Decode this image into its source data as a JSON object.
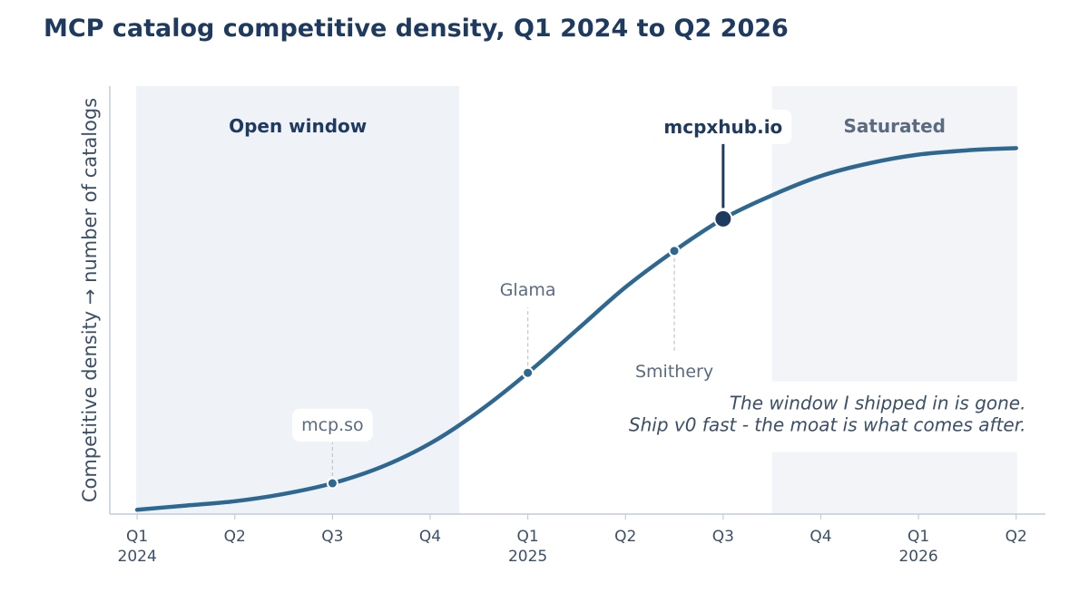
{
  "title": "MCP catalog competitive density, Q1 2024 to Q2 2026",
  "chart_data": {
    "type": "line",
    "title": "MCP catalog competitive density, Q1 2024 to Q2 2026",
    "ylabel": "Competitive density  →  number of catalogs",
    "xlabel": "",
    "x_ticks": [
      {
        "x": 0,
        "label": "Q1",
        "year": "2024"
      },
      {
        "x": 1,
        "label": "Q2",
        "year": ""
      },
      {
        "x": 2,
        "label": "Q3",
        "year": ""
      },
      {
        "x": 3,
        "label": "Q4",
        "year": ""
      },
      {
        "x": 4,
        "label": "Q1",
        "year": "2025"
      },
      {
        "x": 5,
        "label": "Q2",
        "year": ""
      },
      {
        "x": 6,
        "label": "Q3",
        "year": ""
      },
      {
        "x": 7,
        "label": "Q4",
        "year": ""
      },
      {
        "x": 8,
        "label": "Q1",
        "year": "2026"
      },
      {
        "x": 9,
        "label": "Q2",
        "year": ""
      }
    ],
    "x_range": [
      -0.28,
      9.3
    ],
    "y_range": [
      0,
      1
    ],
    "y_ticks_visible": false,
    "grid": false,
    "series": [
      {
        "x": [
          0,
          0.5,
          1,
          1.5,
          2,
          2.5,
          3,
          3.5,
          4,
          4.5,
          5,
          5.5,
          6,
          6.5,
          7,
          7.5,
          8,
          8.5,
          9
        ],
        "y": [
          0.01,
          0.02,
          0.03,
          0.047,
          0.072,
          0.11,
          0.165,
          0.24,
          0.33,
          0.43,
          0.53,
          0.615,
          0.69,
          0.745,
          0.79,
          0.82,
          0.84,
          0.85,
          0.855
        ],
        "color": "#2e6891"
      }
    ],
    "regions": [
      {
        "label": "Open window",
        "x_start": -0.01,
        "x_end": 3.3,
        "color": "#eff3f8",
        "label_color": "#1f3a5f"
      },
      {
        "label": "Saturated",
        "x_start": 6.5,
        "x_end": 9.01,
        "color": "#f2f4f7",
        "label_color": "#5a6b80"
      }
    ],
    "markers": [
      {
        "label": "mcp.so",
        "x": 2.0,
        "y": 0.072,
        "label_y": 0.21,
        "label_position": "above",
        "boxed": true,
        "highlight": false
      },
      {
        "label": "Glama",
        "x": 4.0,
        "y": 0.33,
        "label_y": 0.525,
        "label_position": "above",
        "boxed": false,
        "highlight": false
      },
      {
        "label": "Smithery",
        "x": 5.5,
        "y": 0.615,
        "label_y": 0.335,
        "label_position": "below",
        "boxed": false,
        "highlight": false
      },
      {
        "label": "mcpxhub.io",
        "x": 6.0,
        "y": 0.69,
        "label_y": 0.905,
        "label_position": "above",
        "boxed": true,
        "highlight": true
      }
    ],
    "annotation": {
      "lines": [
        "The window I shipped in is gone.",
        "Ship v0 fast - the moat is what comes after."
      ],
      "x": 9.1,
      "y": 0.245
    },
    "colors": {
      "line": "#2e6891",
      "highlight": "#1f3a5f",
      "muted_text": "#5a6b80",
      "axis": "#c3ccd7",
      "tick_text": "#3b4f66"
    }
  }
}
